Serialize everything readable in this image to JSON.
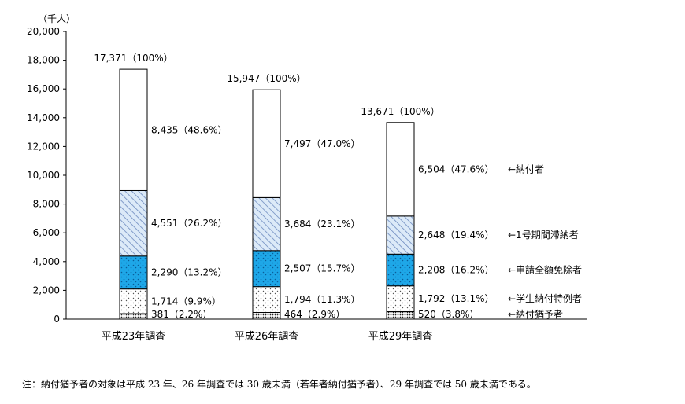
{
  "chart_data": {
    "type": "bar",
    "stacked": true,
    "y_unit": "（千人）",
    "ylim": [
      0,
      20000
    ],
    "yticks": [
      "0",
      "2,000",
      "4,000",
      "6,000",
      "8,000",
      "10,000",
      "12,000",
      "14,000",
      "16,000",
      "18,000",
      "20,000"
    ],
    "ytick_values": [
      0,
      2000,
      4000,
      6000,
      8000,
      10000,
      12000,
      14000,
      16000,
      18000,
      20000
    ],
    "grid": false,
    "categories": [
      "平成23年調査",
      "平成26年調査",
      "平成29年調査"
    ],
    "totals": [
      17371,
      15947,
      13671
    ],
    "total_labels": [
      "17,371（100%）",
      "15,947（100%）",
      "13,671（100%）"
    ],
    "series": [
      {
        "name": "納付猶予者",
        "legend_label": "←納付猶予者",
        "pattern": "dense-dots",
        "values": [
          381,
          464,
          520
        ],
        "labels": [
          "381（2.2%）",
          "464（2.9%）",
          "520（3.8%）"
        ]
      },
      {
        "name": "学生納付特例者",
        "legend_label": "←学生納付特例者",
        "pattern": "sparse-dots",
        "values": [
          1714,
          1794,
          1792
        ],
        "labels": [
          "1,714（9.9%）",
          "1,794（11.3%）",
          "1,792（13.1%）"
        ]
      },
      {
        "name": "申請全額免除者",
        "legend_label": "←申請全額免除者",
        "pattern": "blue-dots",
        "values": [
          2290,
          2507,
          2208
        ],
        "labels": [
          "2,290（13.2%）",
          "2,507（15.7%）",
          "2,208（16.2%）"
        ]
      },
      {
        "name": "1号期間滞納者",
        "legend_label": "←1号期間滞納者",
        "pattern": "diagonal-hatch",
        "values": [
          4551,
          3684,
          2648
        ],
        "labels": [
          "4,551（26.2%）",
          "3,684（23.1%）",
          "2,648（19.4%）"
        ]
      },
      {
        "name": "納付者",
        "legend_label": "←納付者",
        "pattern": "white",
        "values": [
          8435,
          7497,
          6504
        ],
        "labels": [
          "8,435（48.6%）",
          "7,497（47.0%）",
          "6,504（47.6%）"
        ]
      }
    ],
    "colors": {
      "blue": "#1ea7e8",
      "hatch": "#6d8bbf",
      "hatch_bg": "#dceaf8",
      "axis": "#000000"
    }
  },
  "note": "注：納付猶予者の対象は平成 23 年、26 年調査では 30 歳未満（若年者納付猶予者）、29 年調査では 50 歳未満である。"
}
